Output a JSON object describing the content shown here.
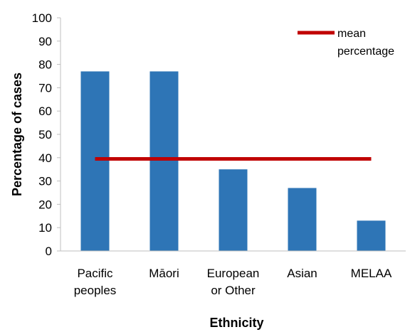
{
  "chart_data": {
    "type": "bar",
    "categories": [
      [
        "Pacific",
        "peoples"
      ],
      [
        "Māori"
      ],
      [
        "European",
        "or Other"
      ],
      [
        "Asian"
      ],
      [
        "MELAA"
      ]
    ],
    "series": [
      {
        "type": "bar",
        "values": [
          77,
          77,
          35,
          27,
          13
        ],
        "color": "#2e75b6"
      },
      {
        "type": "line",
        "name": [
          "mean",
          "percentage"
        ],
        "value": 39.5,
        "color": "#c00000"
      }
    ],
    "xlabel": "Ethnicity",
    "ylabel": "Percentage of cases",
    "ylim": [
      0,
      100
    ],
    "yticks": [
      0,
      10,
      20,
      30,
      40,
      50,
      60,
      70,
      80,
      90,
      100
    ],
    "grid": false,
    "legend": "top-right"
  }
}
